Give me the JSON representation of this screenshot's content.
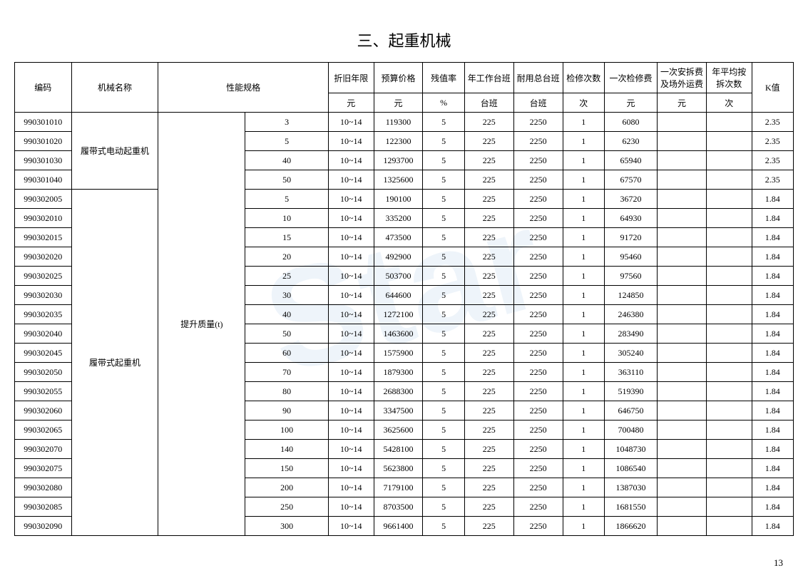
{
  "title": "三、起重机械",
  "page_number": "13",
  "table": {
    "headers_row1": {
      "code": "编码",
      "name": "机械名称",
      "spec": "性能规格",
      "depr_life": "折旧年限",
      "budget_price": "预算价格",
      "residual": "残值率",
      "annual_shift": "年工作台班",
      "durable_shift": "耐用总台班",
      "maint_count": "检修次数",
      "maint_fee": "一次检修费",
      "install_fee": "一次安拆费及场外运费",
      "avg_count": "年平均按拆次数",
      "k_value": "K值"
    },
    "headers_row2": {
      "depr_life": "元",
      "budget_price": "元",
      "residual": "%",
      "annual_shift": "台班",
      "durable_shift": "台班",
      "maint_count": "次",
      "maint_fee": "元",
      "install_fee": "元",
      "avg_count": "次"
    },
    "groups": [
      {
        "name": "履带式电动起重机",
        "spec_label": "",
        "rows": [
          {
            "code": "990301010",
            "spec_val": "3",
            "depr": "10~14",
            "budget": "119300",
            "resid": "5",
            "annual": "225",
            "durable": "2250",
            "mcnt": "1",
            "mfee": "6080",
            "inst": "",
            "avg": "",
            "k": "2.35"
          },
          {
            "code": "990301020",
            "spec_val": "5",
            "depr": "10~14",
            "budget": "122300",
            "resid": "5",
            "annual": "225",
            "durable": "2250",
            "mcnt": "1",
            "mfee": "6230",
            "inst": "",
            "avg": "",
            "k": "2.35"
          },
          {
            "code": "990301030",
            "spec_val": "40",
            "depr": "10~14",
            "budget": "1293700",
            "resid": "5",
            "annual": "225",
            "durable": "2250",
            "mcnt": "1",
            "mfee": "65940",
            "inst": "",
            "avg": "",
            "k": "2.35"
          },
          {
            "code": "990301040",
            "spec_val": "50",
            "depr": "10~14",
            "budget": "1325600",
            "resid": "5",
            "annual": "225",
            "durable": "2250",
            "mcnt": "1",
            "mfee": "67570",
            "inst": "",
            "avg": "",
            "k": "2.35"
          }
        ]
      },
      {
        "name": "履带式起重机",
        "spec_label": "提升质量(t)",
        "rows": [
          {
            "code": "990302005",
            "spec_val": "5",
            "depr": "10~14",
            "budget": "190100",
            "resid": "5",
            "annual": "225",
            "durable": "2250",
            "mcnt": "1",
            "mfee": "36720",
            "inst": "",
            "avg": "",
            "k": "1.84"
          },
          {
            "code": "990302010",
            "spec_val": "10",
            "depr": "10~14",
            "budget": "335200",
            "resid": "5",
            "annual": "225",
            "durable": "2250",
            "mcnt": "1",
            "mfee": "64930",
            "inst": "",
            "avg": "",
            "k": "1.84"
          },
          {
            "code": "990302015",
            "spec_val": "15",
            "depr": "10~14",
            "budget": "473500",
            "resid": "5",
            "annual": "225",
            "durable": "2250",
            "mcnt": "1",
            "mfee": "91720",
            "inst": "",
            "avg": "",
            "k": "1.84"
          },
          {
            "code": "990302020",
            "spec_val": "20",
            "depr": "10~14",
            "budget": "492900",
            "resid": "5",
            "annual": "225",
            "durable": "2250",
            "mcnt": "1",
            "mfee": "95460",
            "inst": "",
            "avg": "",
            "k": "1.84"
          },
          {
            "code": "990302025",
            "spec_val": "25",
            "depr": "10~14",
            "budget": "503700",
            "resid": "5",
            "annual": "225",
            "durable": "2250",
            "mcnt": "1",
            "mfee": "97560",
            "inst": "",
            "avg": "",
            "k": "1.84"
          },
          {
            "code": "990302030",
            "spec_val": "30",
            "depr": "10~14",
            "budget": "644600",
            "resid": "5",
            "annual": "225",
            "durable": "2250",
            "mcnt": "1",
            "mfee": "124850",
            "inst": "",
            "avg": "",
            "k": "1.84"
          },
          {
            "code": "990302035",
            "spec_val": "40",
            "depr": "10~14",
            "budget": "1272100",
            "resid": "5",
            "annual": "225",
            "durable": "2250",
            "mcnt": "1",
            "mfee": "246380",
            "inst": "",
            "avg": "",
            "k": "1.84"
          },
          {
            "code": "990302040",
            "spec_val": "50",
            "depr": "10~14",
            "budget": "1463600",
            "resid": "5",
            "annual": "225",
            "durable": "2250",
            "mcnt": "1",
            "mfee": "283490",
            "inst": "",
            "avg": "",
            "k": "1.84"
          },
          {
            "code": "990302045",
            "spec_val": "60",
            "depr": "10~14",
            "budget": "1575900",
            "resid": "5",
            "annual": "225",
            "durable": "2250",
            "mcnt": "1",
            "mfee": "305240",
            "inst": "",
            "avg": "",
            "k": "1.84"
          },
          {
            "code": "990302050",
            "spec_val": "70",
            "depr": "10~14",
            "budget": "1879300",
            "resid": "5",
            "annual": "225",
            "durable": "2250",
            "mcnt": "1",
            "mfee": "363110",
            "inst": "",
            "avg": "",
            "k": "1.84"
          },
          {
            "code": "990302055",
            "spec_val": "80",
            "depr": "10~14",
            "budget": "2688300",
            "resid": "5",
            "annual": "225",
            "durable": "2250",
            "mcnt": "1",
            "mfee": "519390",
            "inst": "",
            "avg": "",
            "k": "1.84"
          },
          {
            "code": "990302060",
            "spec_val": "90",
            "depr": "10~14",
            "budget": "3347500",
            "resid": "5",
            "annual": "225",
            "durable": "2250",
            "mcnt": "1",
            "mfee": "646750",
            "inst": "",
            "avg": "",
            "k": "1.84"
          },
          {
            "code": "990302065",
            "spec_val": "100",
            "depr": "10~14",
            "budget": "3625600",
            "resid": "5",
            "annual": "225",
            "durable": "2250",
            "mcnt": "1",
            "mfee": "700480",
            "inst": "",
            "avg": "",
            "k": "1.84"
          },
          {
            "code": "990302070",
            "spec_val": "140",
            "depr": "10~14",
            "budget": "5428100",
            "resid": "5",
            "annual": "225",
            "durable": "2250",
            "mcnt": "1",
            "mfee": "1048730",
            "inst": "",
            "avg": "",
            "k": "1.84"
          },
          {
            "code": "990302075",
            "spec_val": "150",
            "depr": "10~14",
            "budget": "5623800",
            "resid": "5",
            "annual": "225",
            "durable": "2250",
            "mcnt": "1",
            "mfee": "1086540",
            "inst": "",
            "avg": "",
            "k": "1.84"
          },
          {
            "code": "990302080",
            "spec_val": "200",
            "depr": "10~14",
            "budget": "7179100",
            "resid": "5",
            "annual": "225",
            "durable": "2250",
            "mcnt": "1",
            "mfee": "1387030",
            "inst": "",
            "avg": "",
            "k": "1.84"
          },
          {
            "code": "990302085",
            "spec_val": "250",
            "depr": "10~14",
            "budget": "8703500",
            "resid": "5",
            "annual": "225",
            "durable": "2250",
            "mcnt": "1",
            "mfee": "1681550",
            "inst": "",
            "avg": "",
            "k": "1.84"
          },
          {
            "code": "990302090",
            "spec_val": "300",
            "depr": "10~14",
            "budget": "9661400",
            "resid": "5",
            "annual": "225",
            "durable": "2250",
            "mcnt": "1",
            "mfee": "1866620",
            "inst": "",
            "avg": "",
            "k": "1.84"
          }
        ]
      }
    ],
    "spec_label_total_rowspan": 22
  }
}
